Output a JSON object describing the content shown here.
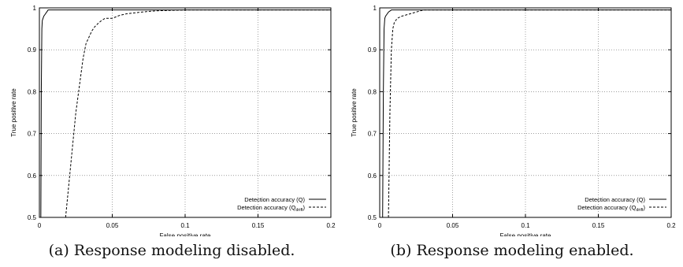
{
  "chart_data": [
    {
      "type": "line",
      "panel_id": "a",
      "caption": "(a) Response modeling disabled.",
      "xlabel": "False positive rate",
      "ylabel": "True positive rate",
      "xlim": [
        0,
        0.2
      ],
      "ylim": [
        0.5,
        1
      ],
      "xticks": [
        "0",
        "0.05",
        "0.1",
        "0.15",
        "0.2"
      ],
      "yticks": [
        "0.5",
        "0.6",
        "0.7",
        "0.8",
        "0.9",
        "1"
      ],
      "xtick_values": [
        0,
        0.05,
        0.1,
        0.15,
        0.2
      ],
      "ytick_values": [
        0.5,
        0.6,
        0.7,
        0.8,
        0.9,
        1.0
      ],
      "grid": true,
      "legend_position": "bottom-right",
      "series": [
        {
          "name": "Detection accuracy (Q)",
          "style": "solid",
          "x": [
            0.001,
            0.0013,
            0.0017,
            0.002,
            0.0025,
            0.003,
            0.004,
            0.005,
            0.006,
            0.01,
            0.2
          ],
          "y": [
            0.5,
            0.8,
            0.95,
            0.97,
            0.975,
            0.98,
            0.985,
            0.99,
            0.995,
            0.995,
            0.995
          ]
        },
        {
          "name_main": "Detection accuracy (Q",
          "name_sub": "drift",
          "name_close": ")",
          "style": "dashed",
          "x": [
            0.018,
            0.025,
            0.03,
            0.032,
            0.034,
            0.036,
            0.038,
            0.04,
            0.042,
            0.045,
            0.05,
            0.055,
            0.06,
            0.07,
            0.08,
            0.1,
            0.2
          ],
          "y": [
            0.5,
            0.75,
            0.88,
            0.915,
            0.93,
            0.945,
            0.955,
            0.962,
            0.968,
            0.975,
            0.975,
            0.982,
            0.986,
            0.99,
            0.993,
            0.995,
            0.995
          ]
        }
      ]
    },
    {
      "type": "line",
      "panel_id": "b",
      "caption": "(b) Response modeling enabled.",
      "xlabel": "False positive rate",
      "ylabel": "True positive rate",
      "xlim": [
        0,
        0.2
      ],
      "ylim": [
        0.5,
        1
      ],
      "xticks": [
        "0",
        "0.05",
        "0.1",
        "0.15",
        "0.2"
      ],
      "yticks": [
        "0.5",
        "0.6",
        "0.7",
        "0.8",
        "0.9",
        "1"
      ],
      "xtick_values": [
        0,
        0.05,
        0.1,
        0.15,
        0.2
      ],
      "ytick_values": [
        0.5,
        0.6,
        0.7,
        0.8,
        0.9,
        1.0
      ],
      "grid": true,
      "legend_position": "bottom-right",
      "series": [
        {
          "name": "Detection accuracy (Q)",
          "style": "solid",
          "x": [
            0.002,
            0.0025,
            0.003,
            0.0035,
            0.004,
            0.005,
            0.006,
            0.008,
            0.2
          ],
          "y": [
            0.5,
            0.8,
            0.95,
            0.975,
            0.98,
            0.985,
            0.99,
            0.995,
            0.995
          ]
        },
        {
          "name_main": "Detection accuracy (Q",
          "name_sub": "drift",
          "name_close": ")",
          "style": "dashed",
          "x": [
            0.006,
            0.007,
            0.008,
            0.009,
            0.01,
            0.012,
            0.015,
            0.02,
            0.025,
            0.03,
            0.2
          ],
          "y": [
            0.5,
            0.75,
            0.9,
            0.95,
            0.965,
            0.975,
            0.98,
            0.985,
            0.99,
            0.995,
            0.995
          ]
        }
      ]
    }
  ]
}
